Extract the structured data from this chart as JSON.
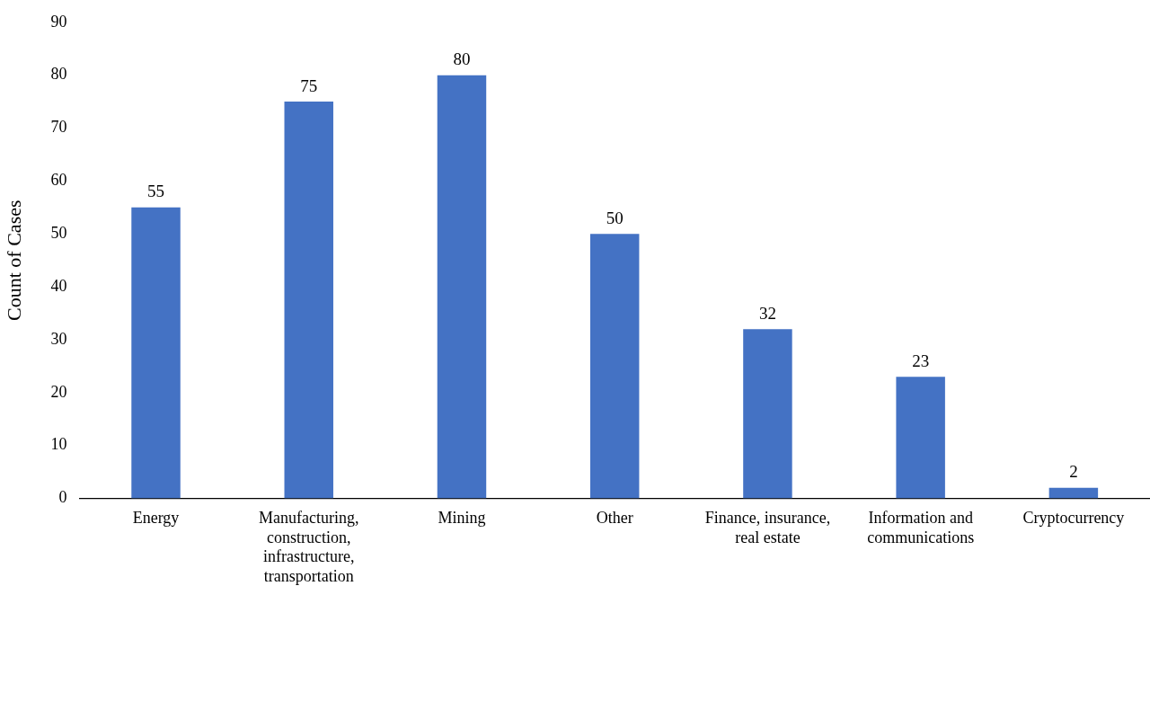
{
  "chart_data": {
    "type": "bar",
    "ylabel": "Count of Cases",
    "categories": [
      "Energy",
      "Manufacturing, construction, infrastructure, transportation",
      "Mining",
      "Other",
      "Finance, insurance, real estate",
      "Information and communications",
      "Cryptocurrency"
    ],
    "values": [
      55,
      75,
      80,
      50,
      32,
      23,
      2
    ],
    "color": "#4472c4",
    "ylim": [
      0,
      90
    ],
    "yticks": [
      0,
      10,
      20,
      30,
      40,
      50,
      60,
      70,
      80,
      90
    ],
    "data_labels": true,
    "grid": false,
    "legend": false
  }
}
